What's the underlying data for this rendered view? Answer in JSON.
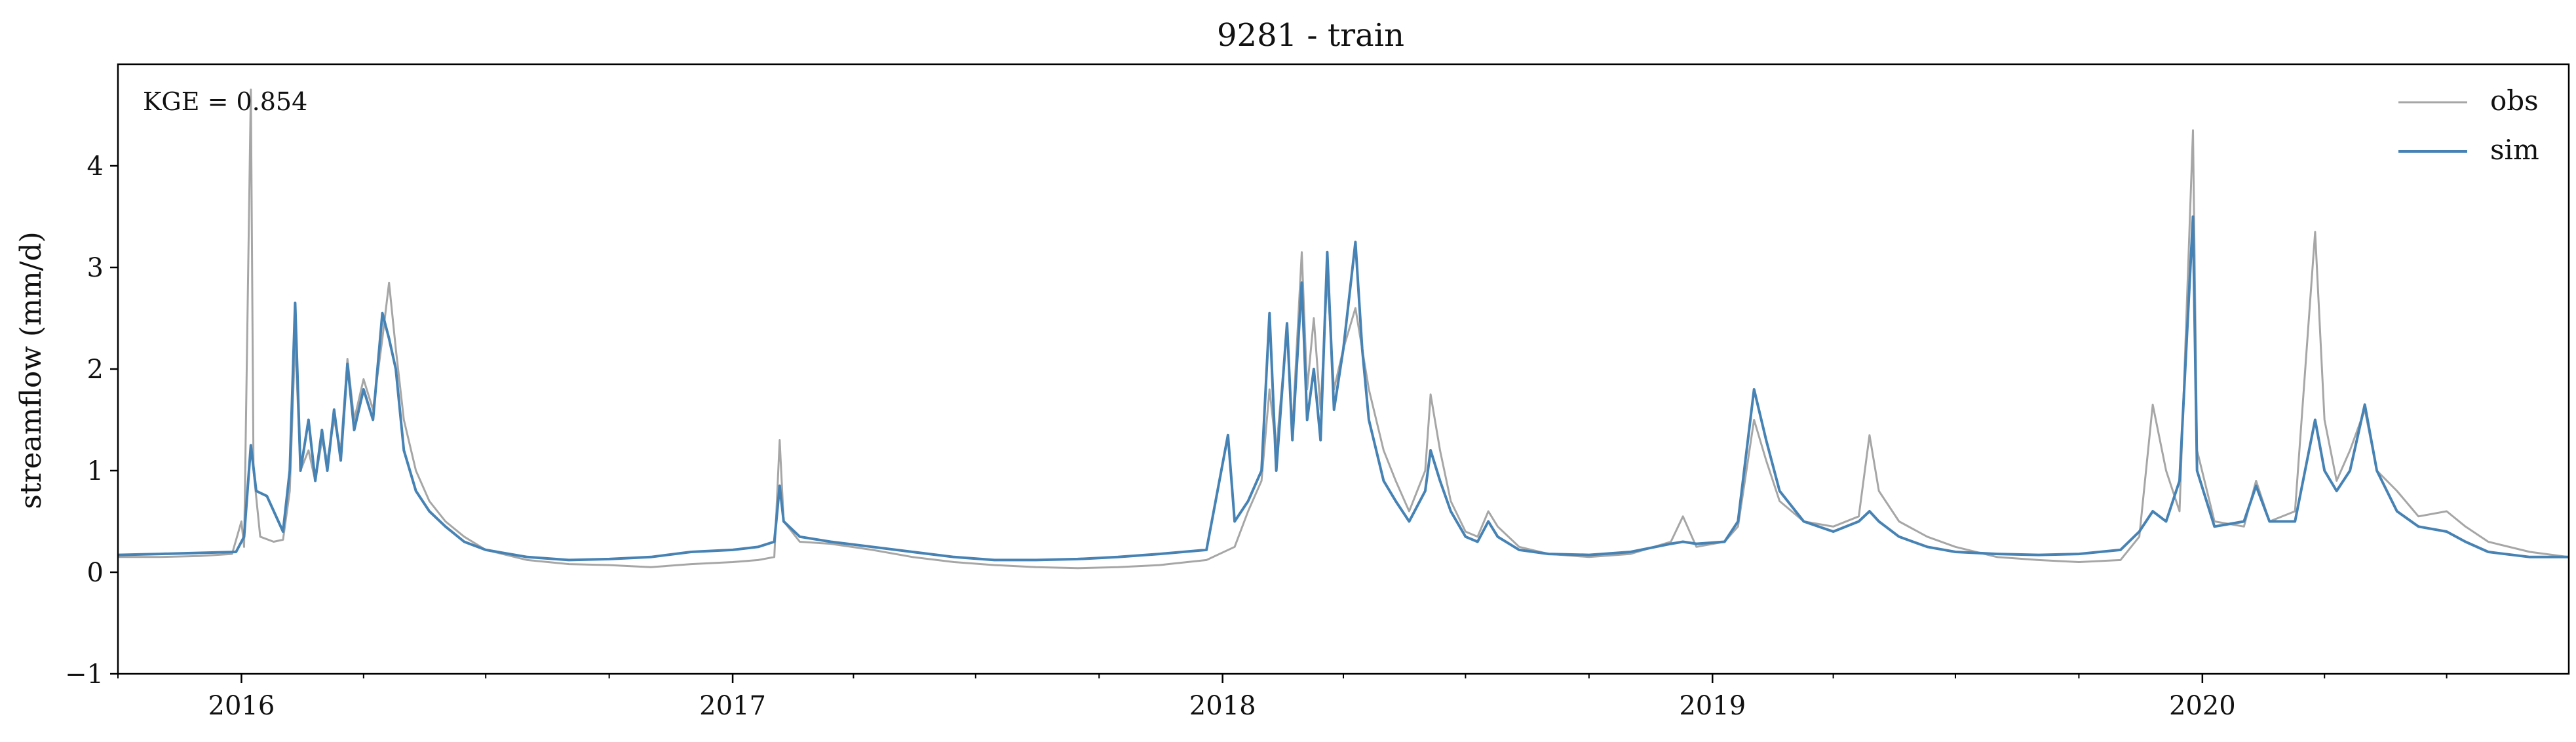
{
  "chart_data": {
    "type": "line",
    "title": "9281 - train",
    "xlabel": "",
    "ylabel": "streamflow (mm/d)",
    "annotation": "KGE = 0.854",
    "xlim": [
      "2015-10-01",
      "2020-09-30"
    ],
    "ylim": [
      -1,
      5
    ],
    "y_ticks": [
      -1,
      0,
      1,
      2,
      3,
      4
    ],
    "y_tick_labels": [
      "−1",
      "0",
      "1",
      "2",
      "3",
      "4"
    ],
    "x_ticks": [
      "2016-01-01",
      "2017-01-01",
      "2018-01-01",
      "2019-01-01",
      "2020-01-01"
    ],
    "x_tick_labels": [
      "2016",
      "2017",
      "2018",
      "2019",
      "2020"
    ],
    "legend_position": "top-right",
    "grid": false,
    "series": [
      {
        "name": "obs",
        "color": "#a6a6a6",
        "points": [
          [
            "2015-10-01",
            0.15
          ],
          [
            "2015-11-01",
            0.15
          ],
          [
            "2015-12-01",
            0.16
          ],
          [
            "2015-12-25",
            0.18
          ],
          [
            "2016-01-01",
            0.5
          ],
          [
            "2016-01-03",
            0.25
          ],
          [
            "2016-01-08",
            4.75
          ],
          [
            "2016-01-10",
            1.0
          ],
          [
            "2016-01-15",
            0.35
          ],
          [
            "2016-01-25",
            0.3
          ],
          [
            "2016-02-01",
            0.32
          ],
          [
            "2016-02-06",
            0.8
          ],
          [
            "2016-02-10",
            2.3
          ],
          [
            "2016-02-14",
            1.0
          ],
          [
            "2016-02-20",
            1.2
          ],
          [
            "2016-02-25",
            0.9
          ],
          [
            "2016-03-01",
            1.3
          ],
          [
            "2016-03-05",
            1.1
          ],
          [
            "2016-03-10",
            1.5
          ],
          [
            "2016-03-15",
            1.2
          ],
          [
            "2016-03-20",
            2.1
          ],
          [
            "2016-03-25",
            1.5
          ],
          [
            "2016-04-01",
            1.9
          ],
          [
            "2016-04-08",
            1.6
          ],
          [
            "2016-04-15",
            2.3
          ],
          [
            "2016-04-20",
            2.85
          ],
          [
            "2016-04-25",
            2.2
          ],
          [
            "2016-05-01",
            1.5
          ],
          [
            "2016-05-10",
            1.0
          ],
          [
            "2016-05-20",
            0.7
          ],
          [
            "2016-06-01",
            0.5
          ],
          [
            "2016-06-15",
            0.35
          ],
          [
            "2016-07-01",
            0.22
          ],
          [
            "2016-08-01",
            0.12
          ],
          [
            "2016-09-01",
            0.08
          ],
          [
            "2016-10-01",
            0.07
          ],
          [
            "2016-11-01",
            0.05
          ],
          [
            "2016-12-01",
            0.08
          ],
          [
            "2017-01-01",
            0.1
          ],
          [
            "2017-01-20",
            0.12
          ],
          [
            "2017-02-01",
            0.15
          ],
          [
            "2017-02-05",
            1.3
          ],
          [
            "2017-02-08",
            0.5
          ],
          [
            "2017-02-20",
            0.3
          ],
          [
            "2017-03-15",
            0.28
          ],
          [
            "2017-04-15",
            0.22
          ],
          [
            "2017-05-15",
            0.15
          ],
          [
            "2017-06-15",
            0.1
          ],
          [
            "2017-07-15",
            0.07
          ],
          [
            "2017-08-15",
            0.05
          ],
          [
            "2017-09-15",
            0.04
          ],
          [
            "2017-10-15",
            0.05
          ],
          [
            "2017-11-15",
            0.07
          ],
          [
            "2017-12-20",
            0.12
          ],
          [
            "2018-01-10",
            0.25
          ],
          [
            "2018-01-20",
            0.6
          ],
          [
            "2018-01-30",
            0.9
          ],
          [
            "2018-02-05",
            1.8
          ],
          [
            "2018-02-10",
            1.2
          ],
          [
            "2018-02-18",
            2.4
          ],
          [
            "2018-02-22",
            1.4
          ],
          [
            "2018-03-01",
            3.15
          ],
          [
            "2018-03-05",
            1.8
          ],
          [
            "2018-03-10",
            2.5
          ],
          [
            "2018-03-15",
            1.6
          ],
          [
            "2018-03-20",
            2.9
          ],
          [
            "2018-03-25",
            1.8
          ],
          [
            "2018-04-01",
            2.2
          ],
          [
            "2018-04-10",
            2.6
          ],
          [
            "2018-04-20",
            1.8
          ],
          [
            "2018-05-01",
            1.2
          ],
          [
            "2018-05-10",
            0.9
          ],
          [
            "2018-05-20",
            0.6
          ],
          [
            "2018-06-01",
            1.0
          ],
          [
            "2018-06-05",
            1.75
          ],
          [
            "2018-06-12",
            1.2
          ],
          [
            "2018-06-20",
            0.7
          ],
          [
            "2018-07-01",
            0.4
          ],
          [
            "2018-07-10",
            0.35
          ],
          [
            "2018-07-18",
            0.6
          ],
          [
            "2018-07-25",
            0.45
          ],
          [
            "2018-08-10",
            0.25
          ],
          [
            "2018-09-01",
            0.18
          ],
          [
            "2018-10-01",
            0.15
          ],
          [
            "2018-11-01",
            0.18
          ],
          [
            "2018-12-01",
            0.3
          ],
          [
            "2018-12-10",
            0.55
          ],
          [
            "2018-12-20",
            0.25
          ],
          [
            "2019-01-10",
            0.3
          ],
          [
            "2019-01-20",
            0.45
          ],
          [
            "2019-02-01",
            1.5
          ],
          [
            "2019-02-10",
            1.1
          ],
          [
            "2019-02-20",
            0.7
          ],
          [
            "2019-03-10",
            0.5
          ],
          [
            "2019-04-01",
            0.45
          ],
          [
            "2019-04-20",
            0.55
          ],
          [
            "2019-04-28",
            1.35
          ],
          [
            "2019-05-05",
            0.8
          ],
          [
            "2019-05-20",
            0.5
          ],
          [
            "2019-06-10",
            0.35
          ],
          [
            "2019-07-01",
            0.25
          ],
          [
            "2019-08-01",
            0.15
          ],
          [
            "2019-09-01",
            0.12
          ],
          [
            "2019-10-01",
            0.1
          ],
          [
            "2019-11-01",
            0.12
          ],
          [
            "2019-11-15",
            0.35
          ],
          [
            "2019-11-25",
            1.65
          ],
          [
            "2019-12-05",
            1.0
          ],
          [
            "2019-12-15",
            0.6
          ],
          [
            "2019-12-25",
            4.35
          ],
          [
            "2019-12-28",
            1.2
          ],
          [
            "2020-01-10",
            0.5
          ],
          [
            "2020-02-01",
            0.45
          ],
          [
            "2020-02-10",
            0.9
          ],
          [
            "2020-02-20",
            0.5
          ],
          [
            "2020-03-10",
            0.6
          ],
          [
            "2020-03-25",
            3.35
          ],
          [
            "2020-04-01",
            1.5
          ],
          [
            "2020-04-10",
            0.9
          ],
          [
            "2020-04-20",
            1.2
          ],
          [
            "2020-05-01",
            1.6
          ],
          [
            "2020-05-10",
            1.0
          ],
          [
            "2020-05-25",
            0.8
          ],
          [
            "2020-06-10",
            0.55
          ],
          [
            "2020-07-01",
            0.6
          ],
          [
            "2020-07-15",
            0.45
          ],
          [
            "2020-08-01",
            0.3
          ],
          [
            "2020-09-01",
            0.2
          ],
          [
            "2020-09-30",
            0.15
          ]
        ]
      },
      {
        "name": "sim",
        "color": "#4682b4",
        "points": [
          [
            "2015-10-01",
            0.17
          ],
          [
            "2015-11-01",
            0.18
          ],
          [
            "2015-12-01",
            0.19
          ],
          [
            "2015-12-28",
            0.2
          ],
          [
            "2016-01-03",
            0.35
          ],
          [
            "2016-01-08",
            1.25
          ],
          [
            "2016-01-12",
            0.8
          ],
          [
            "2016-01-20",
            0.75
          ],
          [
            "2016-02-01",
            0.4
          ],
          [
            "2016-02-06",
            1.0
          ],
          [
            "2016-02-10",
            2.65
          ],
          [
            "2016-02-14",
            1.0
          ],
          [
            "2016-02-20",
            1.5
          ],
          [
            "2016-02-25",
            0.9
          ],
          [
            "2016-03-01",
            1.4
          ],
          [
            "2016-03-05",
            1.0
          ],
          [
            "2016-03-10",
            1.6
          ],
          [
            "2016-03-15",
            1.1
          ],
          [
            "2016-03-20",
            2.05
          ],
          [
            "2016-03-25",
            1.4
          ],
          [
            "2016-04-01",
            1.8
          ],
          [
            "2016-04-08",
            1.5
          ],
          [
            "2016-04-15",
            2.55
          ],
          [
            "2016-04-20",
            2.3
          ],
          [
            "2016-04-25",
            2.0
          ],
          [
            "2016-05-01",
            1.2
          ],
          [
            "2016-05-10",
            0.8
          ],
          [
            "2016-05-20",
            0.6
          ],
          [
            "2016-06-01",
            0.45
          ],
          [
            "2016-06-15",
            0.3
          ],
          [
            "2016-07-01",
            0.22
          ],
          [
            "2016-08-01",
            0.15
          ],
          [
            "2016-09-01",
            0.12
          ],
          [
            "2016-10-01",
            0.13
          ],
          [
            "2016-11-01",
            0.15
          ],
          [
            "2016-12-01",
            0.2
          ],
          [
            "2017-01-01",
            0.22
          ],
          [
            "2017-01-20",
            0.25
          ],
          [
            "2017-02-01",
            0.3
          ],
          [
            "2017-02-05",
            0.85
          ],
          [
            "2017-02-08",
            0.5
          ],
          [
            "2017-02-20",
            0.35
          ],
          [
            "2017-03-15",
            0.3
          ],
          [
            "2017-04-15",
            0.25
          ],
          [
            "2017-05-15",
            0.2
          ],
          [
            "2017-06-15",
            0.15
          ],
          [
            "2017-07-15",
            0.12
          ],
          [
            "2017-08-15",
            0.12
          ],
          [
            "2017-09-15",
            0.13
          ],
          [
            "2017-10-15",
            0.15
          ],
          [
            "2017-11-15",
            0.18
          ],
          [
            "2017-12-20",
            0.22
          ],
          [
            "2018-01-05",
            1.35
          ],
          [
            "2018-01-10",
            0.5
          ],
          [
            "2018-01-20",
            0.7
          ],
          [
            "2018-01-30",
            1.0
          ],
          [
            "2018-02-05",
            2.55
          ],
          [
            "2018-02-10",
            1.0
          ],
          [
            "2018-02-18",
            2.45
          ],
          [
            "2018-02-22",
            1.3
          ],
          [
            "2018-03-01",
            2.85
          ],
          [
            "2018-03-05",
            1.5
          ],
          [
            "2018-03-10",
            2.0
          ],
          [
            "2018-03-15",
            1.3
          ],
          [
            "2018-03-20",
            3.15
          ],
          [
            "2018-03-25",
            1.6
          ],
          [
            "2018-04-01",
            2.2
          ],
          [
            "2018-04-10",
            3.25
          ],
          [
            "2018-04-15",
            2.2
          ],
          [
            "2018-04-20",
            1.5
          ],
          [
            "2018-05-01",
            0.9
          ],
          [
            "2018-05-10",
            0.7
          ],
          [
            "2018-05-20",
            0.5
          ],
          [
            "2018-06-01",
            0.8
          ],
          [
            "2018-06-05",
            1.2
          ],
          [
            "2018-06-12",
            0.9
          ],
          [
            "2018-06-20",
            0.6
          ],
          [
            "2018-07-01",
            0.35
          ],
          [
            "2018-07-10",
            0.3
          ],
          [
            "2018-07-18",
            0.5
          ],
          [
            "2018-07-25",
            0.35
          ],
          [
            "2018-08-10",
            0.22
          ],
          [
            "2018-09-01",
            0.18
          ],
          [
            "2018-10-01",
            0.17
          ],
          [
            "2018-11-01",
            0.2
          ],
          [
            "2018-12-01",
            0.28
          ],
          [
            "2018-12-10",
            0.3
          ],
          [
            "2018-12-20",
            0.28
          ],
          [
            "2019-01-10",
            0.3
          ],
          [
            "2019-01-20",
            0.5
          ],
          [
            "2019-02-01",
            1.8
          ],
          [
            "2019-02-10",
            1.3
          ],
          [
            "2019-02-20",
            0.8
          ],
          [
            "2019-03-10",
            0.5
          ],
          [
            "2019-04-01",
            0.4
          ],
          [
            "2019-04-20",
            0.5
          ],
          [
            "2019-04-28",
            0.6
          ],
          [
            "2019-05-05",
            0.5
          ],
          [
            "2019-05-20",
            0.35
          ],
          [
            "2019-06-10",
            0.25
          ],
          [
            "2019-07-01",
            0.2
          ],
          [
            "2019-08-01",
            0.18
          ],
          [
            "2019-09-01",
            0.17
          ],
          [
            "2019-10-01",
            0.18
          ],
          [
            "2019-11-01",
            0.22
          ],
          [
            "2019-11-15",
            0.4
          ],
          [
            "2019-11-25",
            0.6
          ],
          [
            "2019-12-05",
            0.5
          ],
          [
            "2019-12-15",
            0.9
          ],
          [
            "2019-12-25",
            3.5
          ],
          [
            "2019-12-28",
            1.0
          ],
          [
            "2020-01-10",
            0.45
          ],
          [
            "2020-02-01",
            0.5
          ],
          [
            "2020-02-10",
            0.85
          ],
          [
            "2020-02-20",
            0.5
          ],
          [
            "2020-03-10",
            0.5
          ],
          [
            "2020-03-25",
            1.5
          ],
          [
            "2020-04-01",
            1.0
          ],
          [
            "2020-04-10",
            0.8
          ],
          [
            "2020-04-20",
            1.0
          ],
          [
            "2020-05-01",
            1.65
          ],
          [
            "2020-05-10",
            1.0
          ],
          [
            "2020-05-25",
            0.6
          ],
          [
            "2020-06-10",
            0.45
          ],
          [
            "2020-07-01",
            0.4
          ],
          [
            "2020-07-15",
            0.3
          ],
          [
            "2020-08-01",
            0.2
          ],
          [
            "2020-09-01",
            0.15
          ],
          [
            "2020-09-30",
            0.15
          ]
        ]
      }
    ]
  }
}
